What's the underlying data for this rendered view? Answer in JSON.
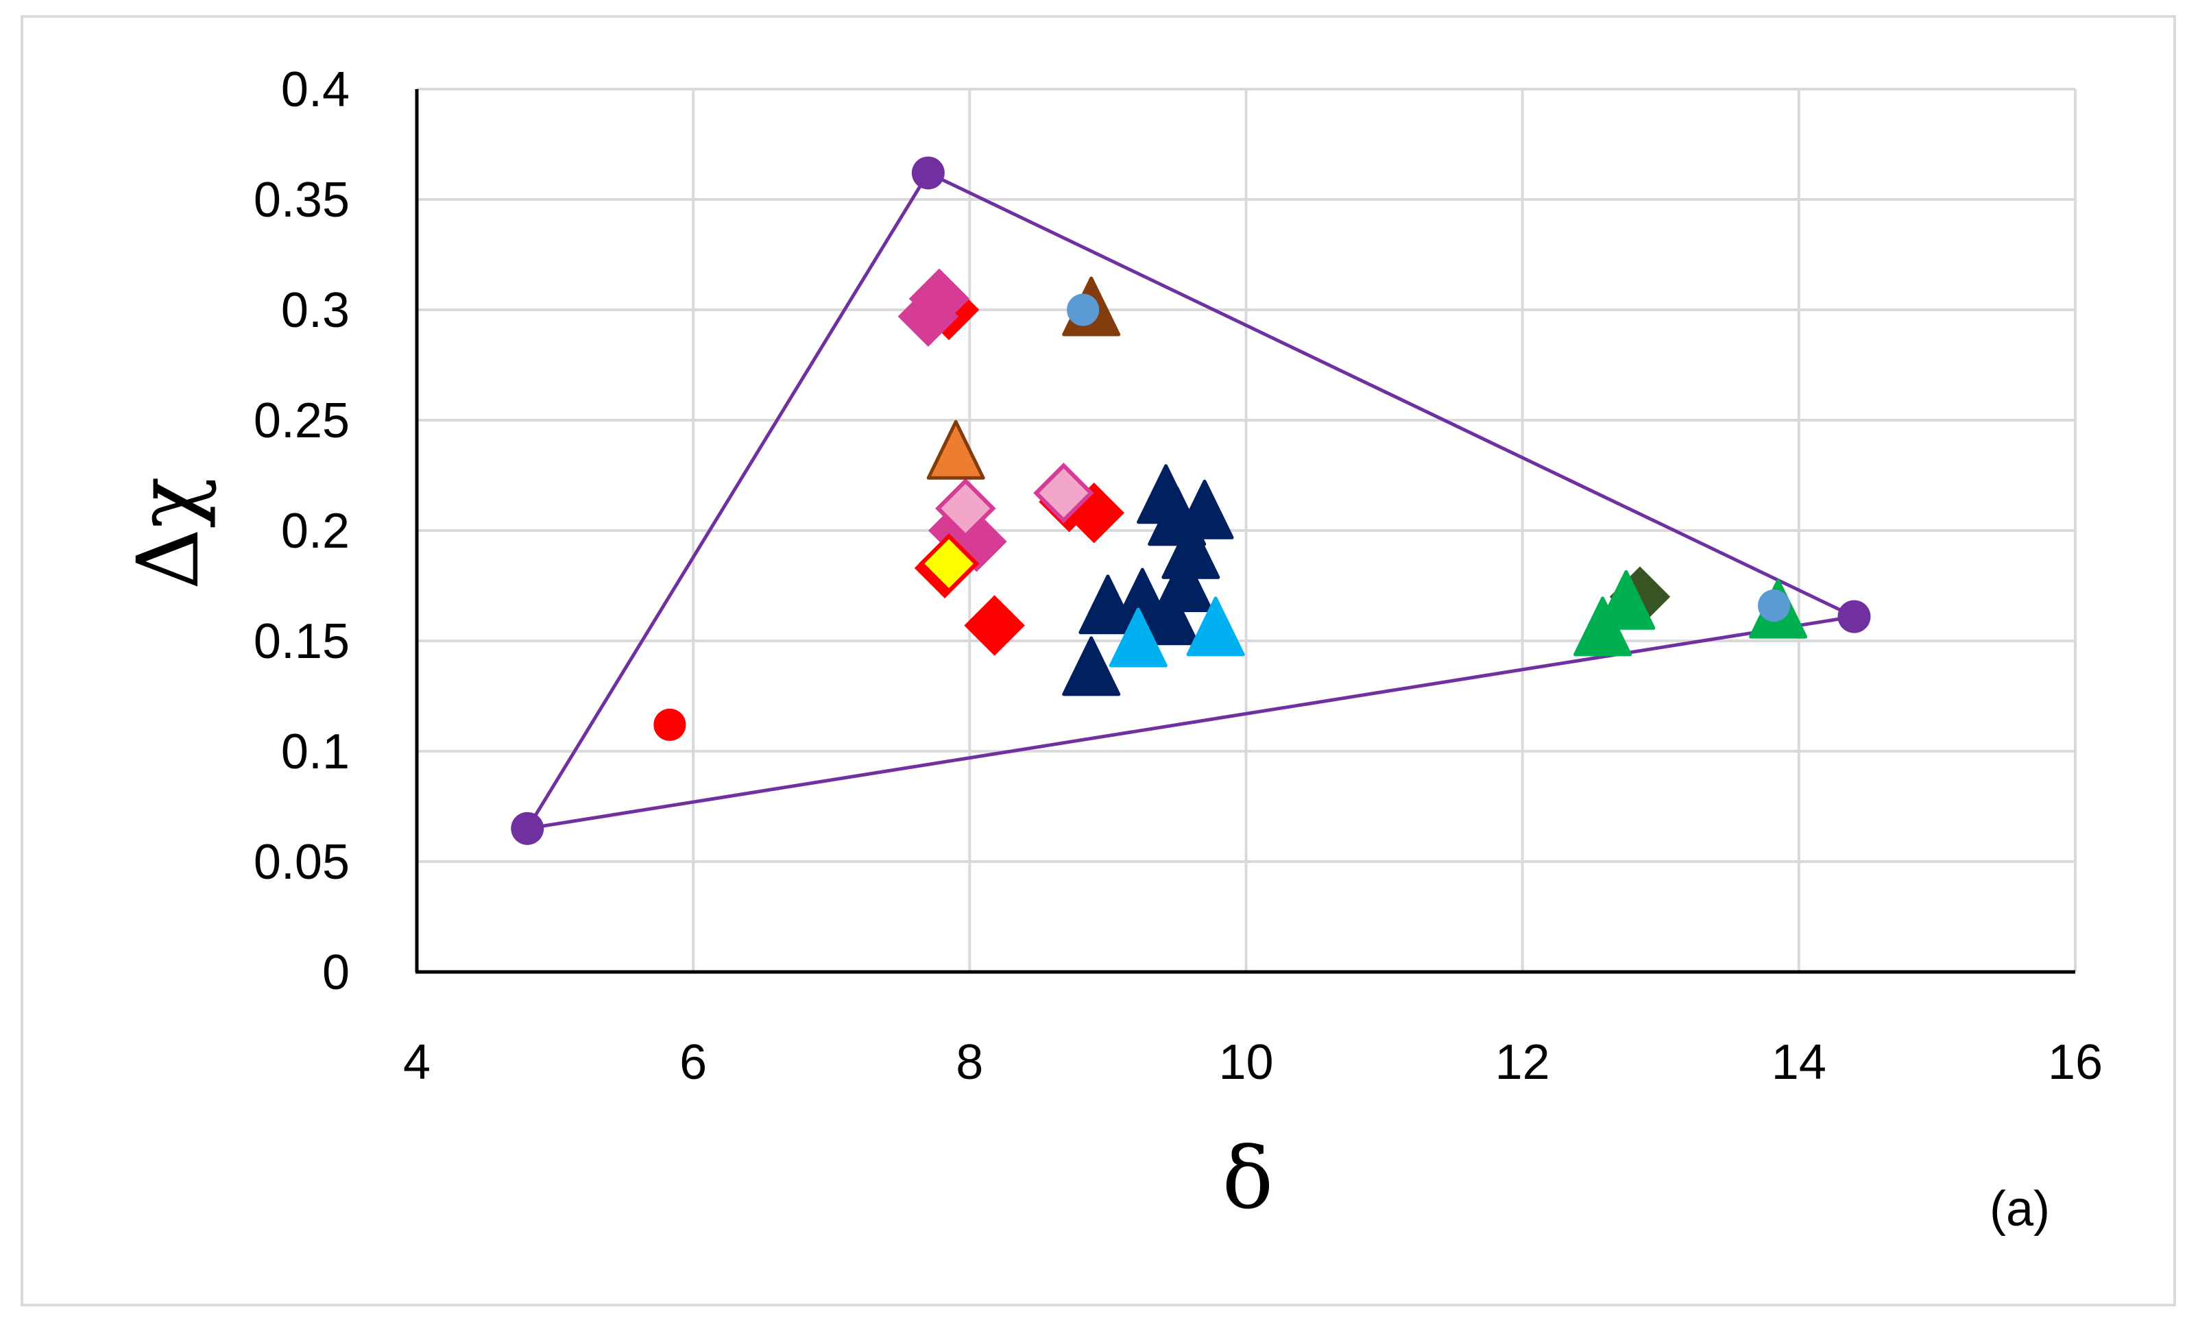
{
  "chart_data": {
    "type": "scatter",
    "title": "",
    "xlabel": "δ",
    "ylabel": "Δχ",
    "panel_label": "(a)",
    "xlim": [
      4,
      16
    ],
    "ylim": [
      0,
      0.4
    ],
    "x_ticks": [
      4,
      6,
      8,
      10,
      12,
      14,
      16
    ],
    "y_ticks": [
      0,
      0.05,
      0.1,
      0.15,
      0.2,
      0.25,
      0.3,
      0.35,
      0.4
    ],
    "x_tick_labels": [
      "4",
      "6",
      "8",
      "10",
      "12",
      "14",
      "16"
    ],
    "y_tick_labels": [
      "0",
      "0.05",
      "0.1",
      "0.15",
      "0.2",
      "0.25",
      "0.3",
      "0.35",
      "0.4"
    ],
    "grid": true,
    "legend": "none",
    "boundary": {
      "color": "#7030a0",
      "vertices": [
        {
          "x": 7.7,
          "y": 0.362
        },
        {
          "x": 14.4,
          "y": 0.161
        },
        {
          "x": 4.8,
          "y": 0.065
        }
      ]
    },
    "series": [
      {
        "marker": "circle",
        "color": "#ff0000",
        "edge": "#ff0000",
        "points": [
          {
            "x": 5.83,
            "y": 0.112
          }
        ]
      },
      {
        "marker": "diamond",
        "color": "#ff0000",
        "edge": "#ff0000",
        "points": [
          {
            "x": 7.85,
            "y": 0.3
          },
          {
            "x": 8.72,
            "y": 0.213
          },
          {
            "x": 8.9,
            "y": 0.208
          },
          {
            "x": 8.18,
            "y": 0.157
          },
          {
            "x": 7.82,
            "y": 0.183
          }
        ]
      },
      {
        "marker": "diamond",
        "color": "#d63c96",
        "edge": "#d63c96",
        "points": [
          {
            "x": 7.7,
            "y": 0.297
          },
          {
            "x": 7.78,
            "y": 0.305
          },
          {
            "x": 7.92,
            "y": 0.2
          },
          {
            "x": 8.05,
            "y": 0.195
          }
        ]
      },
      {
        "marker": "diamond",
        "color": "#f2a6c8",
        "edge": "#d63c96",
        "points": [
          {
            "x": 7.97,
            "y": 0.21
          },
          {
            "x": 8.68,
            "y": 0.217
          }
        ]
      },
      {
        "marker": "diamond",
        "color": "#ffff00",
        "edge": "#ff0000",
        "points": [
          {
            "x": 7.85,
            "y": 0.185
          }
        ]
      },
      {
        "marker": "triangle",
        "color": "#ed7d31",
        "edge": "#843c0c",
        "points": [
          {
            "x": 7.9,
            "y": 0.235
          }
        ]
      },
      {
        "marker": "triangle",
        "color": "#843c0c",
        "edge": "#843c0c",
        "points": [
          {
            "x": 8.88,
            "y": 0.3
          }
        ]
      },
      {
        "marker": "triangle",
        "color": "#002060",
        "edge": "#002060",
        "points": [
          {
            "x": 9.42,
            "y": 0.215
          },
          {
            "x": 9.5,
            "y": 0.205
          },
          {
            "x": 9.7,
            "y": 0.208
          },
          {
            "x": 9.6,
            "y": 0.19
          },
          {
            "x": 9.55,
            "y": 0.175
          },
          {
            "x": 9.0,
            "y": 0.165
          },
          {
            "x": 9.25,
            "y": 0.168
          },
          {
            "x": 9.45,
            "y": 0.16
          },
          {
            "x": 8.88,
            "y": 0.137
          }
        ]
      },
      {
        "marker": "triangle",
        "color": "#00b0f0",
        "edge": "#00b0f0",
        "points": [
          {
            "x": 9.22,
            "y": 0.15
          },
          {
            "x": 9.78,
            "y": 0.155
          }
        ]
      },
      {
        "marker": "diamond",
        "color": "#375623",
        "edge": "#375623",
        "points": [
          {
            "x": 12.85,
            "y": 0.17
          }
        ]
      },
      {
        "marker": "triangle",
        "color": "#00b050",
        "edge": "#00b050",
        "points": [
          {
            "x": 12.58,
            "y": 0.155
          },
          {
            "x": 12.75,
            "y": 0.167
          },
          {
            "x": 13.85,
            "y": 0.163
          }
        ]
      },
      {
        "marker": "circle",
        "color": "#5b9bd5",
        "edge": "#5b9bd5",
        "points": [
          {
            "x": 8.82,
            "y": 0.3
          },
          {
            "x": 13.82,
            "y": 0.166
          }
        ]
      }
    ]
  }
}
